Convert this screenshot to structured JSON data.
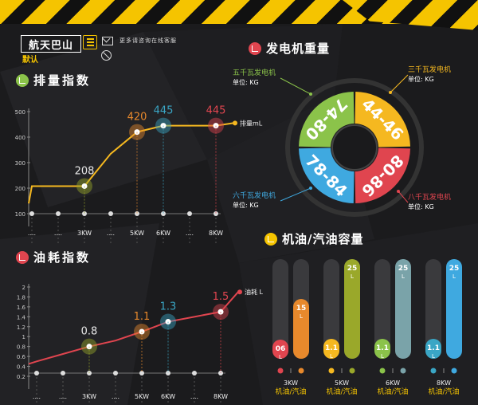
{
  "header": {
    "logo": "航天巴山",
    "mode": "默认",
    "notice": "更多请咨询在线客服"
  },
  "colors": {
    "yellow": "#f5c400",
    "orange": "#e8892c",
    "teal": "#3aa6c5",
    "red": "#e0454f",
    "green": "#8bc34a",
    "olive": "#9aa82a",
    "blue": "#3fa9e0",
    "gray_teal": "#7aa3a9"
  },
  "displacement": {
    "title": "排量指数",
    "series_label": "排量mL",
    "y_ticks": [
      "500",
      "400",
      "300",
      "200",
      "100"
    ],
    "x_labels": [
      "....",
      "....",
      "3KW",
      "....",
      "5KW",
      "6KW",
      "....",
      "8KW"
    ],
    "highlights": [
      {
        "label": "208",
        "x_index": 2,
        "value": 208,
        "color": "#9aa82a"
      },
      {
        "label": "420",
        "x_index": 4,
        "value": 420,
        "color": "#e8892c"
      },
      {
        "label": "445",
        "x_index": 5,
        "value": 445,
        "color": "#3aa6c5"
      },
      {
        "label": "445",
        "x_index": 7,
        "value": 445,
        "color": "#e0454f"
      }
    ]
  },
  "fuel": {
    "title": "油耗指数",
    "series_label": "油耗 L",
    "y_ticks": [
      "2",
      "1.8",
      "1.6",
      "1.4",
      "1.2",
      "1",
      "0.8",
      "0.6",
      "0.4",
      "0.2"
    ],
    "x_labels": [
      "....",
      "....",
      "3KW",
      "....",
      "5KW",
      "6KW",
      "....",
      "8KW"
    ],
    "highlights": [
      {
        "label": "0.8",
        "x_index": 2,
        "value": 0.8,
        "color": "#9aa82a"
      },
      {
        "label": "1.1",
        "x_index": 4,
        "value": 1.1,
        "color": "#e8892c"
      },
      {
        "label": "1.3",
        "x_index": 5,
        "value": 1.3,
        "color": "#3aa6c5"
      },
      {
        "label": "1.5",
        "x_index": 7,
        "value": 1.5,
        "color": "#e0454f"
      }
    ]
  },
  "weight": {
    "title": "发电机重量",
    "segments": [
      {
        "range": "44-46",
        "color": "#f5b820",
        "name": "三千瓦发电机",
        "unit": "单位: KG"
      },
      {
        "range": "80-86",
        "color": "#e0454f",
        "name": "八千瓦发电机",
        "unit": "单位: KG"
      },
      {
        "range": "78-84",
        "color": "#3fa9e0",
        "name": "六千瓦发电机",
        "unit": "单位: KG"
      },
      {
        "range": "74-80",
        "color": "#8bc34a",
        "name": "五千瓦发电机",
        "unit": "单位: KG"
      }
    ]
  },
  "oil": {
    "title": "机油/汽油容量",
    "groups": [
      {
        "label": "3KW",
        "sub": "机油/汽油",
        "oil": "06",
        "oil_unit": "L",
        "oil_level": 0.06,
        "gas": "15",
        "gas_unit": "L",
        "gas_level": 0.6,
        "oil_color": "#e0454f",
        "gas_color": "#e8892c"
      },
      {
        "label": "5KW",
        "sub": "机油/汽油",
        "oil": "1.1",
        "oil_unit": "L",
        "oil_level": 0.2,
        "gas": "25",
        "gas_unit": "L",
        "gas_level": 1.0,
        "oil_color": "#f5b820",
        "gas_color": "#9aa82a"
      },
      {
        "label": "6KW",
        "sub": "机油/汽油",
        "oil": "1.1",
        "oil_unit": "L",
        "oil_level": 0.2,
        "gas": "25",
        "gas_unit": "L",
        "gas_level": 1.0,
        "oil_color": "#8bc34a",
        "gas_color": "#7aa3a9"
      },
      {
        "label": "8KW",
        "sub": "机油/汽油",
        "oil": "1.1",
        "oil_unit": "L",
        "oil_level": 0.2,
        "gas": "25",
        "gas_unit": "L",
        "gas_level": 1.0,
        "oil_color": "#3aa6c5",
        "gas_color": "#3fa9e0"
      }
    ]
  },
  "chart_data": [
    {
      "type": "line",
      "title": "排量指数",
      "x": [
        "....",
        "....",
        "3KW",
        "....",
        "5KW",
        "6KW",
        "....",
        "8KW"
      ],
      "series": [
        {
          "name": "排量mL",
          "values": [
            208,
            208,
            208,
            335,
            420,
            445,
            445,
            445
          ]
        }
      ],
      "ylim": [
        100,
        500
      ]
    },
    {
      "type": "line",
      "title": "油耗指数",
      "x": [
        "....",
        "....",
        "3KW",
        "....",
        "5KW",
        "6KW",
        "....",
        "8KW"
      ],
      "series": [
        {
          "name": "油耗 L",
          "values": [
            0.5,
            0.65,
            0.8,
            0.92,
            1.1,
            1.3,
            1.4,
            1.5
          ]
        }
      ],
      "ylim": [
        0.2,
        2
      ]
    }
  ]
}
